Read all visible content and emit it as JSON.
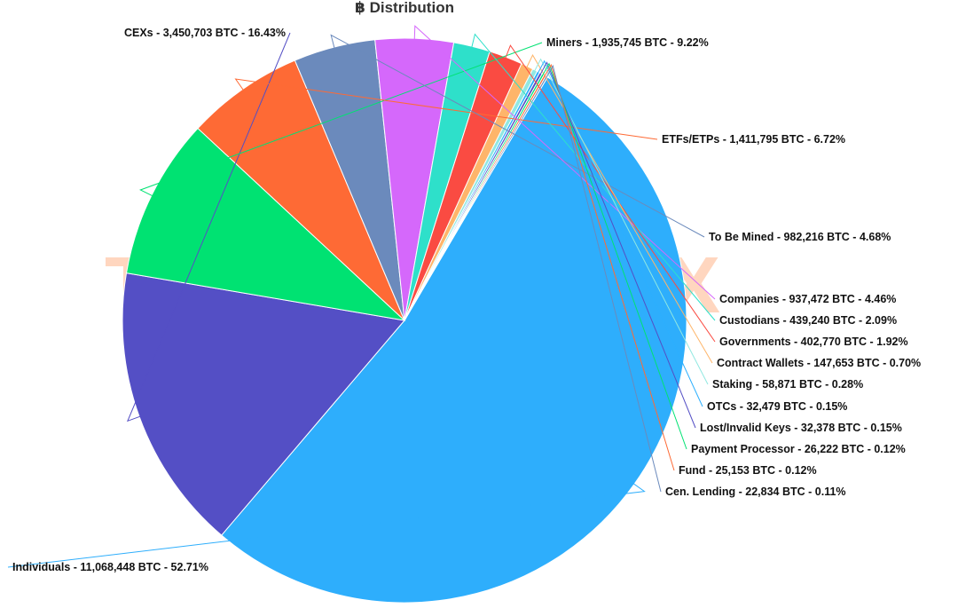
{
  "chart_data": {
    "type": "pie",
    "title": "฿ Distribution",
    "unit": "BTC",
    "slices": [
      {
        "name": "Individuals",
        "value_label": "11,068,448",
        "value": 11068448,
        "percent_label": "52.71%",
        "color": "#2eaefc"
      },
      {
        "name": "CEXs",
        "value_label": "3,450,703",
        "value": 3450703,
        "percent_label": "16.43%",
        "color": "#544fc5"
      },
      {
        "name": "Miners",
        "value_label": "1,935,745",
        "value": 1935745,
        "percent_label": "9.22%",
        "color": "#00e272"
      },
      {
        "name": "ETFs/ETPs",
        "value_label": "1,411,795",
        "value": 1411795,
        "percent_label": "6.72%",
        "color": "#fe6a35"
      },
      {
        "name": "To Be Mined",
        "value_label": "982,216",
        "value": 982216,
        "percent_label": "4.68%",
        "color": "#6b8abc"
      },
      {
        "name": "Companies",
        "value_label": "937,472",
        "value": 937472,
        "percent_label": "4.46%",
        "color": "#d568fb"
      },
      {
        "name": "Custodians",
        "value_label": "439,240",
        "value": 439240,
        "percent_label": "2.09%",
        "color": "#2ee0ca"
      },
      {
        "name": "Governments",
        "value_label": "402,770",
        "value": 402770,
        "percent_label": "1.92%",
        "color": "#fa4b42"
      },
      {
        "name": "Contract Wallets",
        "value_label": "147,653",
        "value": 147653,
        "percent_label": "0.70%",
        "color": "#feb56a"
      },
      {
        "name": "Staking",
        "value_label": "58,871",
        "value": 58871,
        "percent_label": "0.28%",
        "color": "#91e8e1"
      },
      {
        "name": "OTCs",
        "value_label": "32,479",
        "value": 32479,
        "percent_label": "0.15%",
        "color": "#2caffe"
      },
      {
        "name": "Lost/Invalid Keys",
        "value_label": "32,378",
        "value": 32378,
        "percent_label": "0.15%",
        "color": "#544fc5"
      },
      {
        "name": "Payment Processor",
        "value_label": "26,222",
        "value": 26222,
        "percent_label": "0.12%",
        "color": "#00e272"
      },
      {
        "name": "Fund",
        "value_label": "25,153",
        "value": 25153,
        "percent_label": "0.12%",
        "color": "#fe6a35"
      },
      {
        "name": "Cen. Lending",
        "value_label": "22,834",
        "value": 22834,
        "percent_label": "0.11%",
        "color": "#6b8abc"
      }
    ]
  }
}
